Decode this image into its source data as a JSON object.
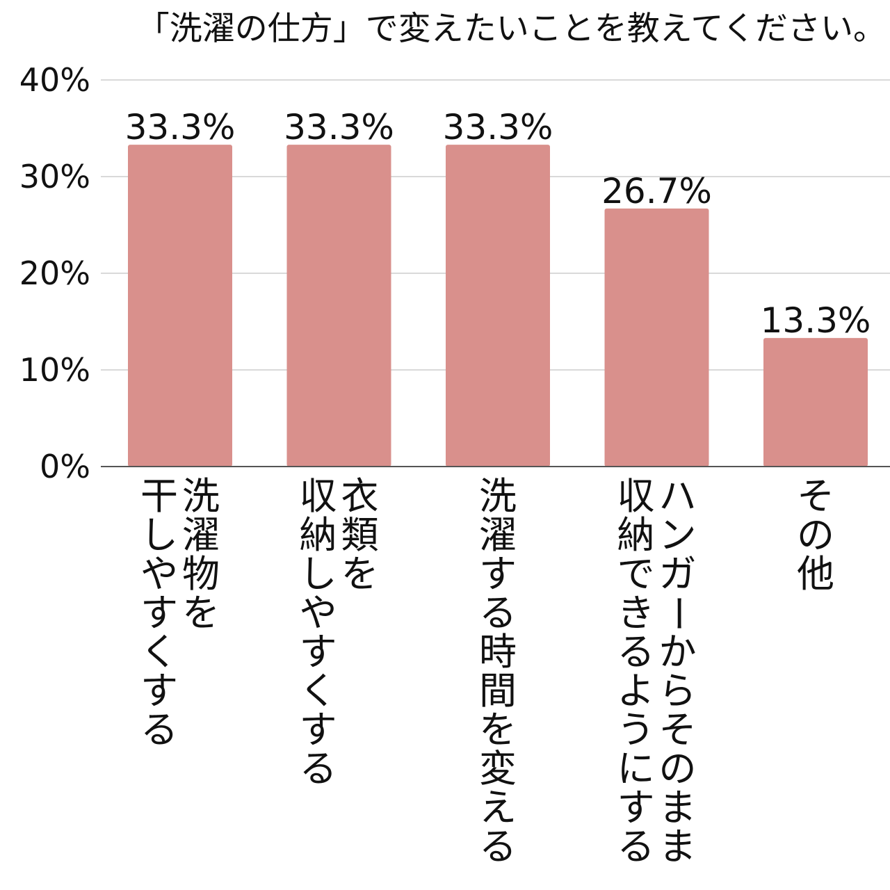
{
  "chart_data": {
    "type": "bar",
    "title": "「洗濯の仕方」で変えたいことを教えてください。",
    "categories": [
      [
        "洗濯物を",
        "干しやすくする"
      ],
      [
        "衣類を",
        "収納しやすくする"
      ],
      [
        "洗濯する時間を変える"
      ],
      [
        "ハンガーからそのまま",
        "収納できるようにする"
      ],
      [
        "その他"
      ]
    ],
    "values": [
      33.3,
      33.3,
      33.3,
      26.7,
      13.3
    ],
    "value_labels": [
      "33.3%",
      "33.3%",
      "33.3%",
      "26.7%",
      "13.3%"
    ],
    "yticks": [
      0,
      10,
      20,
      30,
      40
    ],
    "ytick_labels": [
      "0%",
      "10%",
      "20%",
      "30%",
      "40%"
    ],
    "ylim": [
      0,
      40
    ],
    "xlabel": "",
    "ylabel": "",
    "grid": true,
    "legend": "none",
    "colors": {
      "bar": "#d9908c",
      "grid": "#d9d9d9",
      "axis": "#555555"
    }
  }
}
